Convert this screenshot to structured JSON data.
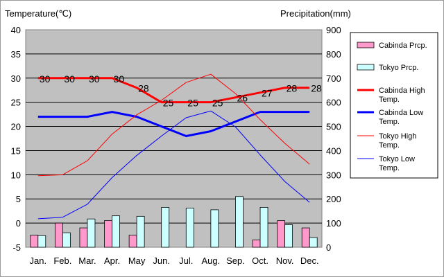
{
  "chart_data": {
    "type": "bar+line",
    "categories": [
      "Jan.",
      "Feb.",
      "Mar.",
      "Apr.",
      "May",
      "Jun.",
      "Jul.",
      "Aug.",
      "Sep.",
      "Oct.",
      "Nov.",
      "Dec."
    ],
    "left_axis": {
      "label": "Temperature(℃)",
      "min": -5,
      "max": 40,
      "step": 5
    },
    "right_axis": {
      "label": "Precipitation(mm)",
      "min": 0,
      "max": 900,
      "step": 100
    },
    "bar_series": [
      {
        "name": "Cabinda Prcp.",
        "color": "#ff99cc",
        "values": [
          50,
          100,
          80,
          110,
          50,
          0,
          0,
          0,
          0,
          30,
          110,
          80
        ]
      },
      {
        "name": "Tokyo Prcp.",
        "color": "#ccffff",
        "values": [
          48,
          60,
          117,
          130,
          128,
          165,
          162,
          155,
          210,
          165,
          93,
          40
        ]
      }
    ],
    "line_series": [
      {
        "name": "Cabinda High Temp.",
        "color": "#ff0000",
        "width": "thick",
        "values": [
          30,
          30,
          30,
          30,
          28,
          25,
          25,
          25,
          26,
          27,
          28,
          28
        ],
        "labels": [
          "30",
          "30",
          "30",
          "30",
          "28",
          "25",
          "25",
          "25",
          "26",
          "27",
          "28",
          "28"
        ]
      },
      {
        "name": "Cabinda Low Temp.",
        "color": "#0000ff",
        "width": "thick",
        "values": [
          22,
          22,
          22,
          23,
          22,
          20,
          18,
          19,
          21,
          23,
          23,
          23
        ]
      },
      {
        "name": "Tokyo High Temp.",
        "color": "#ff0000",
        "width": "thin",
        "values": [
          9.8,
          10.0,
          12.9,
          18.4,
          22.4,
          25.4,
          29.1,
          30.8,
          26.8,
          21.4,
          16.5,
          12.2
        ]
      },
      {
        "name": "Tokyo Low Temp.",
        "color": "#0000ff",
        "width": "thin",
        "values": [
          0.9,
          1.2,
          3.9,
          9.4,
          14.0,
          18.0,
          21.8,
          23.2,
          19.9,
          14.1,
          8.6,
          4.3
        ]
      }
    ],
    "grid": true,
    "plot_background": "#c0c0c0",
    "legend_position": "right"
  }
}
